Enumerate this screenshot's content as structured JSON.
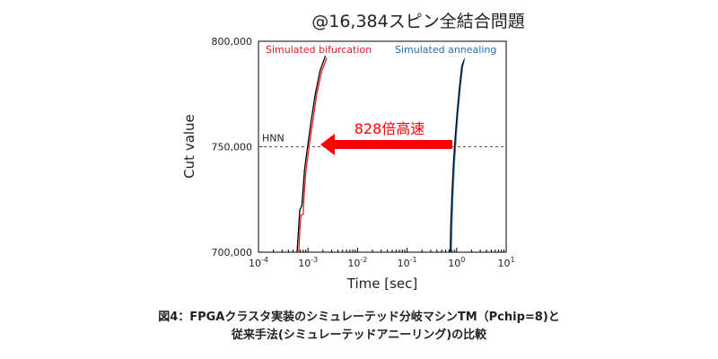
{
  "chart_data": {
    "type": "line",
    "title": "@16,384スピン全結合問題",
    "xlabel": "Time [sec]",
    "ylabel": "Cut value",
    "x_scale": "log",
    "xlim": [
      0.0001,
      10
    ],
    "ylim": [
      700000,
      800000
    ],
    "x_ticks": [
      {
        "base": "10",
        "exp": "-4"
      },
      {
        "base": "10",
        "exp": "-3"
      },
      {
        "base": "10",
        "exp": "-2"
      },
      {
        "base": "10",
        "exp": "-1"
      },
      {
        "base": "10",
        "exp": "0"
      },
      {
        "base": "10",
        "exp": "1"
      }
    ],
    "y_ticks": [
      "700,000",
      "750,000",
      "800,000"
    ],
    "series": [
      {
        "name": "Simulated bifurcation",
        "color": "#e02020",
        "points": [
          [
            0.00065,
            700000
          ],
          [
            0.00068,
            710000
          ],
          [
            0.00072,
            717500
          ],
          [
            0.0008,
            718000
          ],
          [
            0.00082,
            724000
          ],
          [
            0.0009,
            738000
          ],
          [
            0.00105,
            750000
          ],
          [
            0.00125,
            762000
          ],
          [
            0.0015,
            775000
          ],
          [
            0.0019,
            786000
          ],
          [
            0.0024,
            792000
          ]
        ]
      },
      {
        "name": "",
        "color": "#000000",
        "points": [
          [
            0.0006,
            700000
          ],
          [
            0.00064,
            710000
          ],
          [
            0.00068,
            720000
          ],
          [
            0.00075,
            722000
          ],
          [
            0.00078,
            727000
          ],
          [
            0.00085,
            739000
          ],
          [
            0.00098,
            750000
          ],
          [
            0.00115,
            762000
          ],
          [
            0.0014,
            775000
          ],
          [
            0.00175,
            786000
          ],
          [
            0.00225,
            793000
          ]
        ]
      },
      {
        "name": "Simulated annealing",
        "color": "#1f6fb5",
        "points": [
          [
            0.78,
            700000
          ],
          [
            0.8,
            712000
          ],
          [
            0.84,
            727000
          ],
          [
            0.9,
            742000
          ],
          [
            0.97,
            754000
          ],
          [
            1.06,
            766000
          ],
          [
            1.18,
            778000
          ],
          [
            1.32,
            788000
          ],
          [
            1.45,
            792000
          ]
        ]
      },
      {
        "name": "",
        "color": "#000000",
        "points": [
          [
            0.74,
            700000
          ],
          [
            0.76,
            712000
          ],
          [
            0.8,
            727000
          ],
          [
            0.86,
            742000
          ],
          [
            0.93,
            754000
          ],
          [
            1.02,
            766000
          ],
          [
            1.14,
            778000
          ],
          [
            1.27,
            788000
          ],
          [
            1.4,
            791000
          ]
        ]
      }
    ],
    "reference_line": {
      "label": "HNN",
      "y": 750000
    },
    "annotation": {
      "text": "828倍高速",
      "color": "#ff0000"
    },
    "grid": false
  },
  "caption": {
    "line1": "図4：FPGAクラスタ実装のシミュレーテッド分岐マシンTM（Pchip=8)と",
    "line2": "従来手法(シミュレーテッドアニーリング)の比較"
  }
}
